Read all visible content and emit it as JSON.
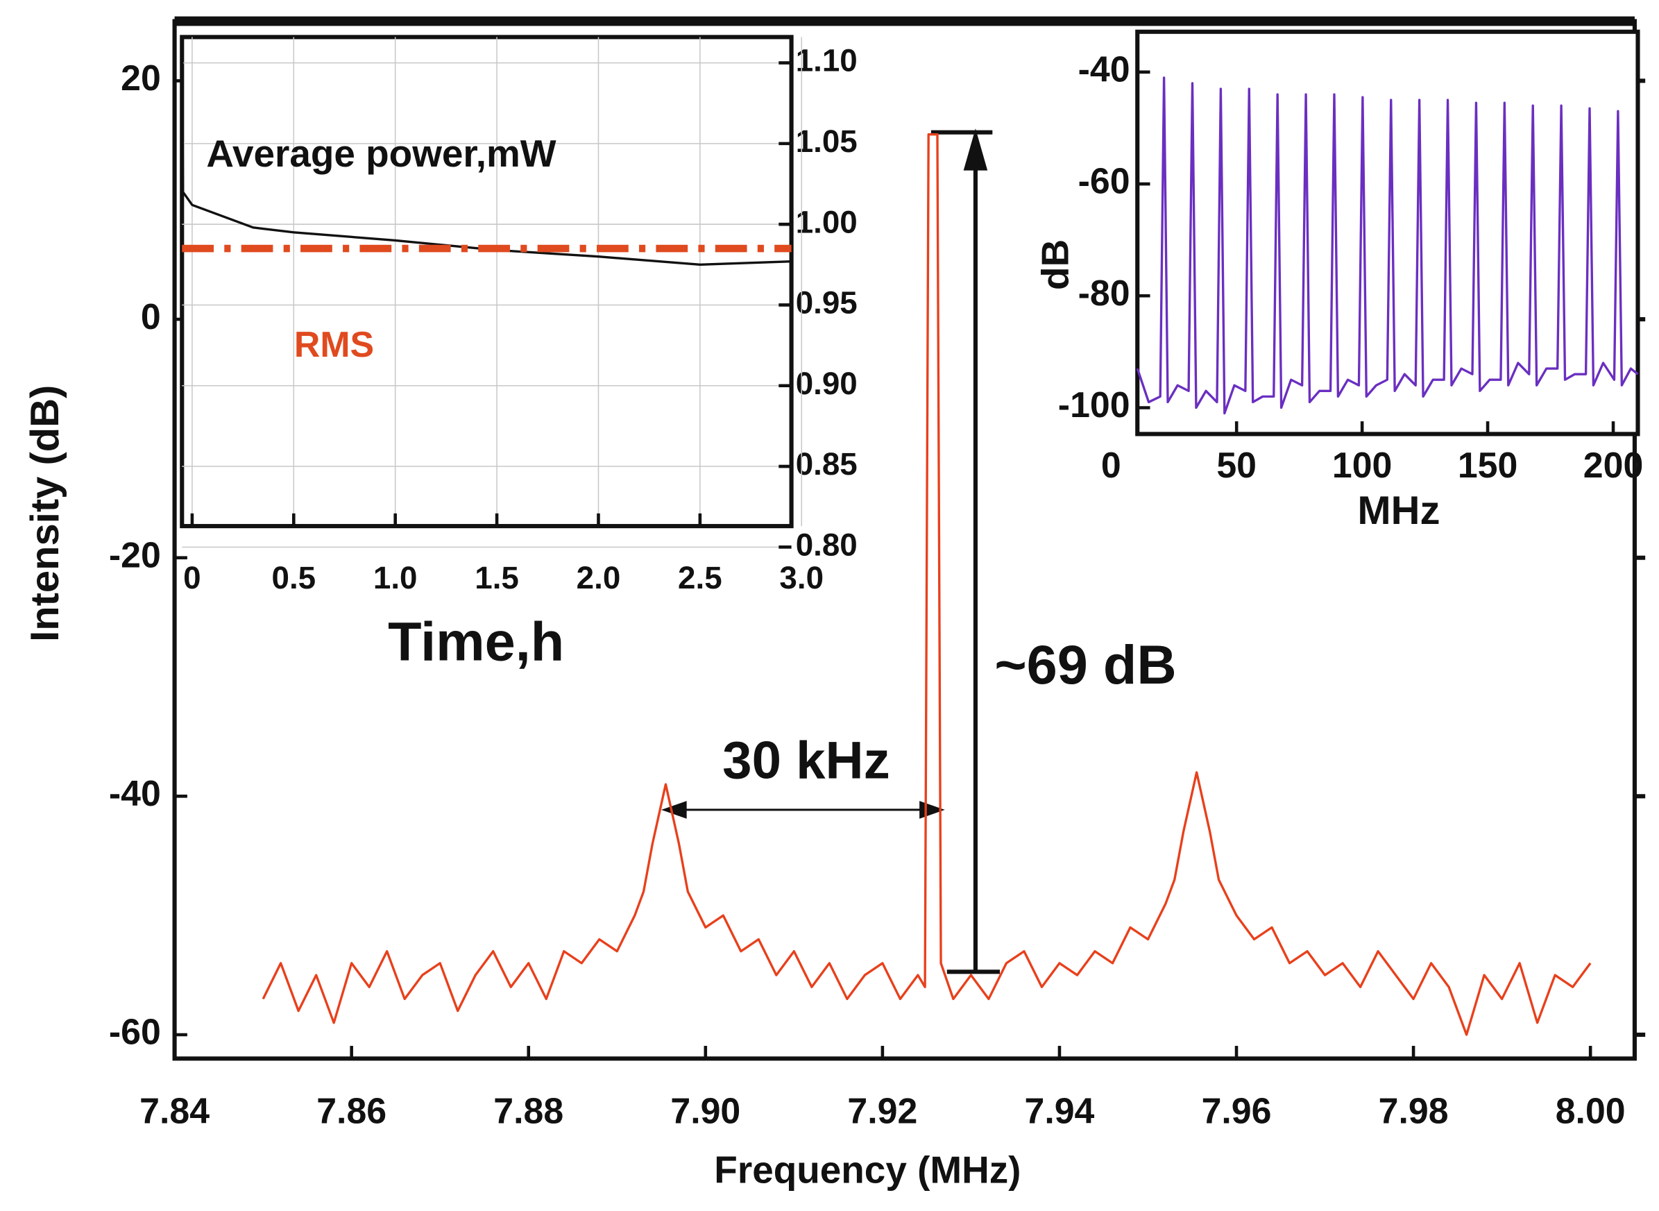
{
  "chart_data": [
    {
      "type": "line",
      "xlabel": "Frequency (MHz)",
      "ylabel": "Intensity (dB)",
      "annotations": [
        "30 kHz",
        "~69 dB"
      ],
      "color": "#e8401c",
      "x": [
        7.85,
        7.852,
        7.854,
        7.856,
        7.858,
        7.86,
        7.862,
        7.864,
        7.866,
        7.868,
        7.87,
        7.872,
        7.874,
        7.876,
        7.878,
        7.88,
        7.882,
        7.884,
        7.886,
        7.888,
        7.89,
        7.892,
        7.893,
        7.894,
        7.8955,
        7.897,
        7.898,
        7.9,
        7.902,
        7.904,
        7.906,
        7.908,
        7.91,
        7.912,
        7.914,
        7.916,
        7.918,
        7.92,
        7.922,
        7.924,
        7.9248,
        7.9252,
        7.9262,
        7.9266,
        7.928,
        7.93,
        7.932,
        7.934,
        7.936,
        7.938,
        7.94,
        7.942,
        7.944,
        7.946,
        7.948,
        7.95,
        7.952,
        7.953,
        7.954,
        7.9555,
        7.957,
        7.958,
        7.96,
        7.962,
        7.964,
        7.966,
        7.968,
        7.97,
        7.972,
        7.974,
        7.976,
        7.978,
        7.98,
        7.982,
        7.984,
        7.986,
        7.988,
        7.99,
        7.992,
        7.994,
        7.996,
        7.998,
        8.0
      ],
      "values": [
        -57,
        -54,
        -58,
        -55,
        -59,
        -54,
        -56,
        -53,
        -57,
        -55,
        -54,
        -58,
        -55,
        -53,
        -56,
        -54,
        -57,
        -53,
        -54,
        -52,
        -53,
        -50,
        -48,
        -44,
        -39,
        -44,
        -48,
        -51,
        -50,
        -53,
        -52,
        -55,
        -53,
        -56,
        -54,
        -57,
        -55,
        -54,
        -57,
        -55,
        -56,
        15.5,
        15.5,
        -54,
        -57,
        -55,
        -57,
        -54,
        -53,
        -56,
        -54,
        -55,
        -53,
        -54,
        -51,
        -52,
        -49,
        -47,
        -43,
        -38,
        -43,
        -47,
        -50,
        -52,
        -51,
        -54,
        -53,
        -55,
        -54,
        -56,
        -53,
        -55,
        -57,
        -54,
        -56,
        -60,
        -55,
        -57,
        -54,
        -59,
        -55,
        -56,
        -54
      ],
      "xlim": [
        7.84,
        8.005
      ],
      "ylim": [
        -62,
        25
      ],
      "xticks": [
        7.84,
        7.86,
        7.88,
        {
          "value": 7.9,
          "label": "7.90"
        },
        7.92,
        7.94,
        7.96,
        7.98,
        {
          "value": 8.0,
          "label": "8.00"
        }
      ],
      "yticks": [
        20,
        0,
        -20,
        -40,
        -60
      ]
    },
    {
      "type": "line",
      "xlabel": "Time,h",
      "grid": true,
      "x": [
        -0.05,
        -0.045,
        0,
        0.3,
        0.5,
        1.0,
        1.5,
        2.0,
        2.5,
        2.95
      ],
      "series": [
        {
          "name": "Average power,mW",
          "color": "#111111",
          "axis": "y2",
          "values": [
            1.116,
            1.02,
            1.012,
            0.998,
            0.995,
            0.99,
            0.984,
            0.98,
            0.975,
            0.977
          ]
        },
        {
          "name": "RMS",
          "color": "#e04a1f",
          "axis": "y2",
          "linestyle": "dashdot",
          "values": [
            0.985,
            0.985,
            0.985,
            0.985,
            0.985,
            0.985,
            0.985,
            0.985,
            0.985,
            0.985
          ]
        }
      ],
      "xlim": [
        -0.05,
        2.95
      ],
      "y2lim": [
        0.813,
        1.116
      ],
      "xticks": [
        0,
        0.5,
        {
          "value": 1,
          "label": "1.0"
        },
        1.5,
        {
          "value": 2,
          "label": "2.0"
        },
        2.5,
        {
          "value": 3,
          "label": "3.0"
        }
      ],
      "y2ticks": [
        {
          "value": 1.1,
          "label": "1.10"
        },
        1.05,
        {
          "value": 1,
          "label": "1.00"
        },
        0.95,
        {
          "value": 0.9,
          "label": "0.90"
        },
        0.85,
        {
          "value": 0.8,
          "label": "0.80"
        }
      ]
    },
    {
      "type": "line",
      "xlabel": "MHz",
      "ylabel": "dB",
      "color": "#6a2fc0",
      "x": [
        10.5,
        15,
        19.6,
        21.1,
        22.6,
        26.5,
        30.9,
        32.4,
        33.9,
        37.8,
        42.2,
        43.7,
        45.2,
        49.1,
        53.5,
        55.0,
        56.5,
        60.4,
        64.8,
        66.3,
        67.8,
        71.7,
        76.1,
        77.6,
        79.1,
        83.0,
        87.4,
        88.9,
        90.4,
        94.3,
        98.7,
        100.2,
        101.7,
        105.6,
        110.0,
        111.5,
        113.0,
        116.9,
        121.3,
        122.8,
        124.3,
        128.2,
        132.6,
        134.1,
        135.6,
        139.5,
        143.9,
        145.4,
        146.9,
        150.8,
        155.2,
        156.7,
        158.2,
        162.1,
        166.5,
        168.0,
        169.5,
        173.4,
        177.8,
        179.3,
        180.8,
        184.7,
        189.1,
        190.6,
        192.1,
        196.0,
        200.4,
        201.9,
        203.4,
        207,
        209.8
      ],
      "values": [
        -93,
        -99,
        -98,
        -41,
        -99,
        -96,
        -97,
        -42,
        -100,
        -97,
        -99,
        -43,
        -101,
        -96,
        -97,
        -43,
        -99,
        -98,
        -98,
        -44,
        -100,
        -95,
        -96,
        -44,
        -99,
        -97,
        -97,
        -44,
        -98,
        -95,
        -96,
        -44.5,
        -98,
        -96,
        -95,
        -45,
        -97,
        -94,
        -96,
        -45,
        -98,
        -95,
        -95,
        -45,
        -96,
        -93,
        -94,
        -45.5,
        -97,
        -95,
        -95,
        -45.5,
        -96,
        -92,
        -94,
        -46,
        -96,
        -93,
        -93,
        -46,
        -95,
        -94,
        -94,
        -46.5,
        -96,
        -92,
        -95,
        -47,
        -96,
        -93,
        -94
      ],
      "xlim": [
        10.5,
        209.8
      ],
      "ylim": [
        -104.7,
        -32.8
      ],
      "xticks": [
        0,
        50,
        100,
        150,
        200
      ],
      "yticks": [
        -40,
        -60,
        -80,
        -100
      ]
    }
  ]
}
